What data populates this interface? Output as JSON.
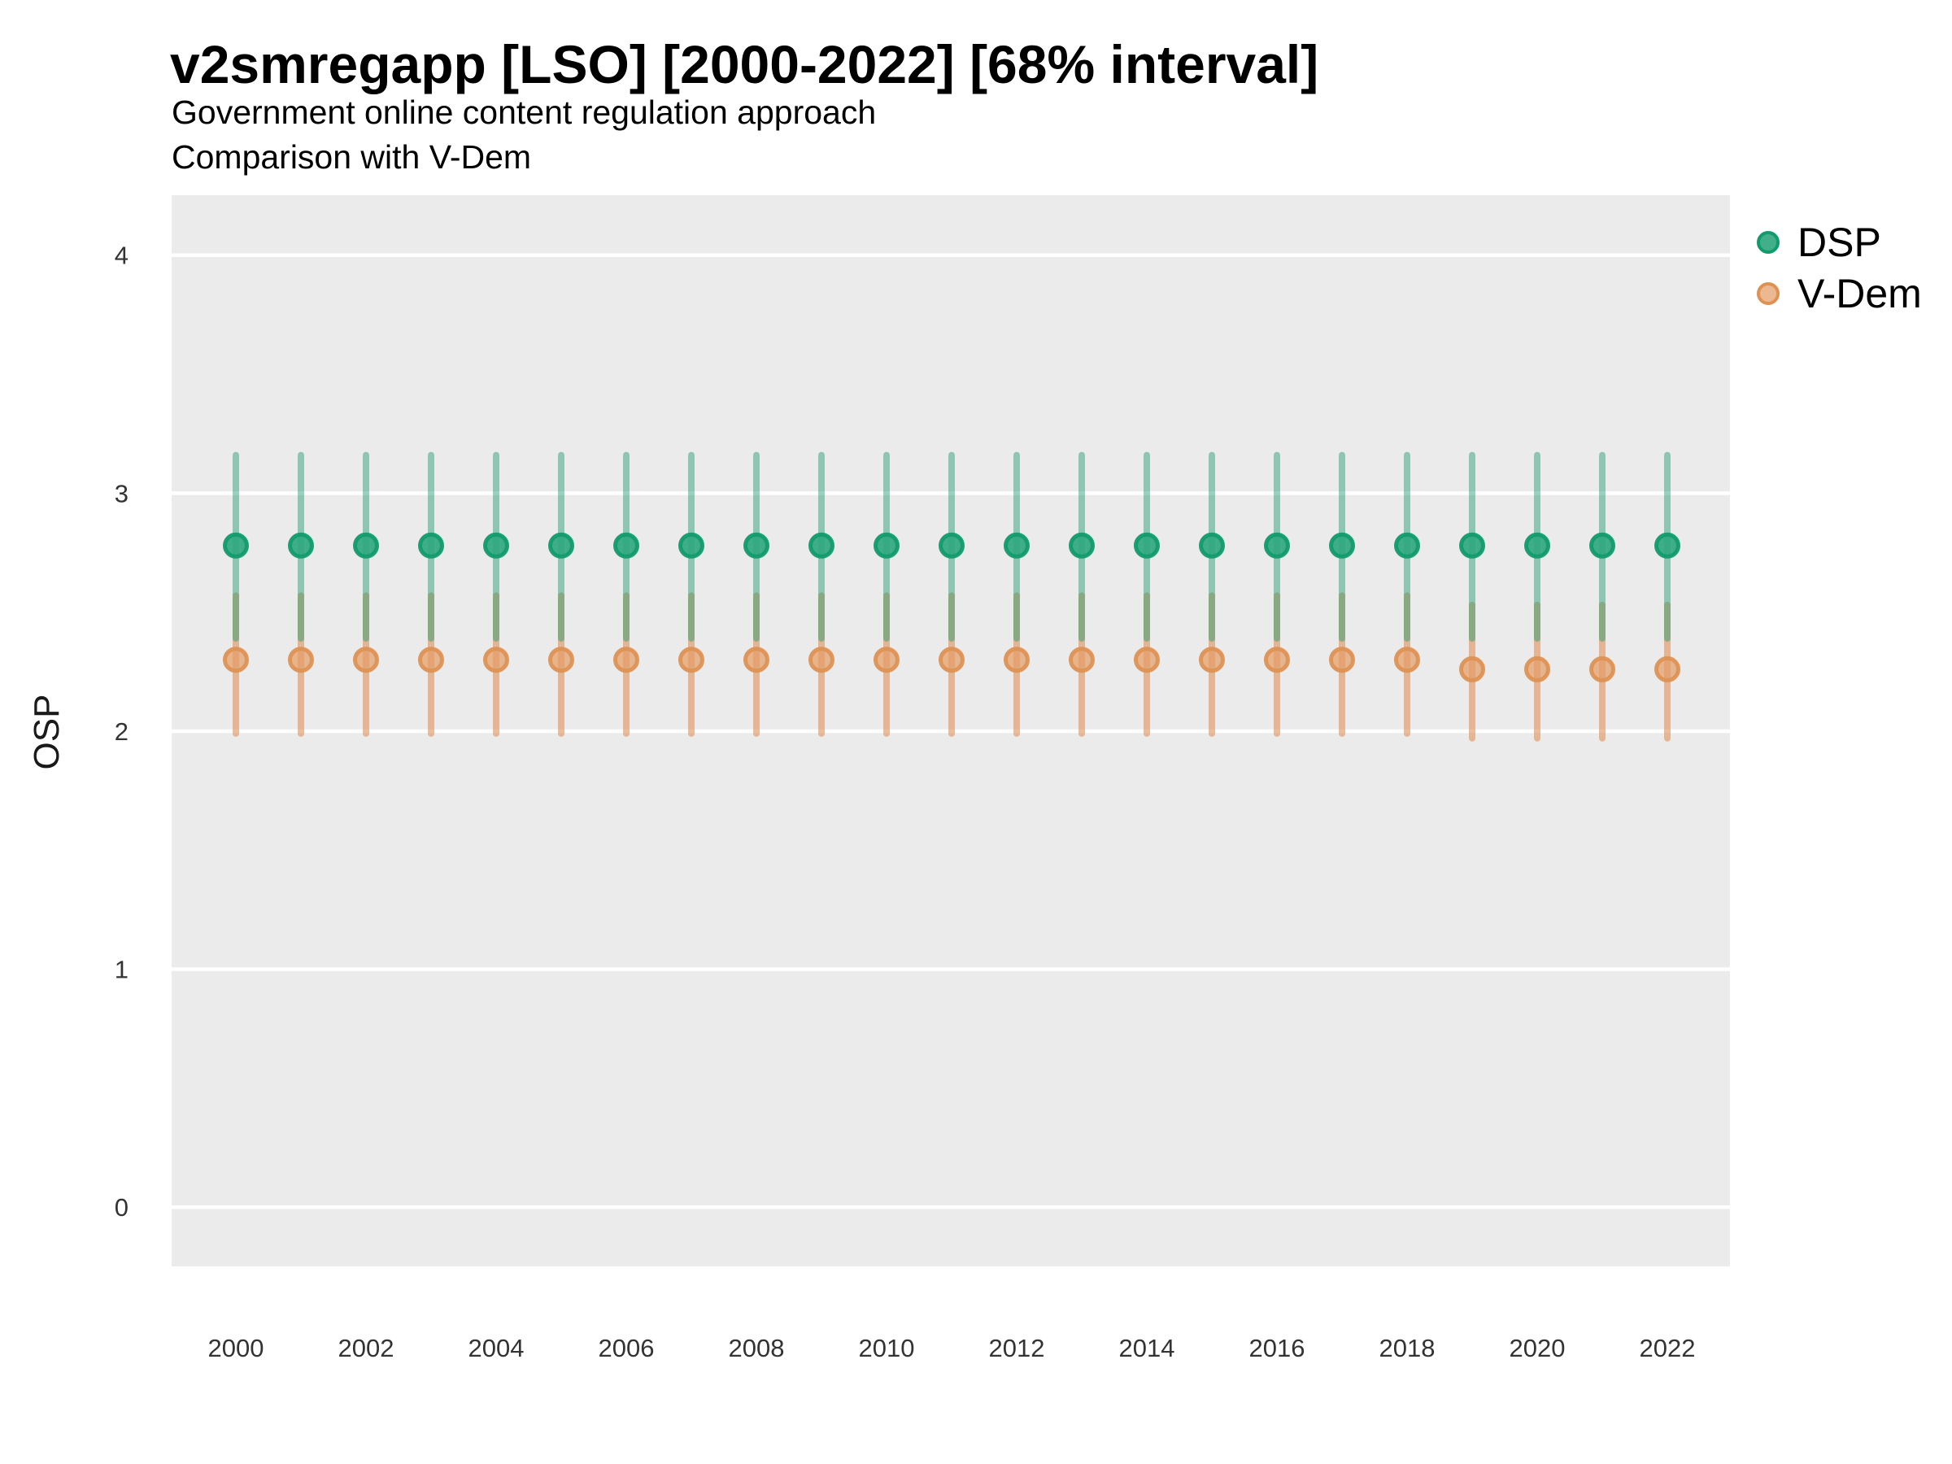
{
  "chart_data": {
    "type": "pointrange",
    "title": "v2smregapp [LSO] [2000-2022] [68% interval]",
    "subtitle_line1": "Government online content regulation approach",
    "subtitle_line2": "Comparison with V-Dem",
    "ylabel": "OSP",
    "xlabel": "",
    "interval_label": "68% interval",
    "ylim": [
      -0.25,
      4.25
    ],
    "y_ticks": [
      0,
      1,
      2,
      3,
      4
    ],
    "x_ticks": [
      2000,
      2002,
      2004,
      2006,
      2008,
      2010,
      2012,
      2014,
      2016,
      2018,
      2020,
      2022
    ],
    "grid": "horizontal-major-only",
    "legend_position": "right",
    "panel_bg": "#EBEBEB",
    "grid_color": "#FFFFFF",
    "axis_text_color": "#333333",
    "series": [
      {
        "name": "V-Dem",
        "color": "#E0945C",
        "bar_alpha": 0.62,
        "point_fill": "#E59D68",
        "point_fill_alpha": 0.72,
        "point_stroke": "#DD9254",
        "points": [
          {
            "year": 2000,
            "est": 2.3,
            "lo": 1.99,
            "hi": 2.57
          },
          {
            "year": 2001,
            "est": 2.3,
            "lo": 1.99,
            "hi": 2.57
          },
          {
            "year": 2002,
            "est": 2.3,
            "lo": 1.99,
            "hi": 2.57
          },
          {
            "year": 2003,
            "est": 2.3,
            "lo": 1.99,
            "hi": 2.57
          },
          {
            "year": 2004,
            "est": 2.3,
            "lo": 1.99,
            "hi": 2.57
          },
          {
            "year": 2005,
            "est": 2.3,
            "lo": 1.99,
            "hi": 2.57
          },
          {
            "year": 2006,
            "est": 2.3,
            "lo": 1.99,
            "hi": 2.57
          },
          {
            "year": 2007,
            "est": 2.3,
            "lo": 1.99,
            "hi": 2.57
          },
          {
            "year": 2008,
            "est": 2.3,
            "lo": 1.99,
            "hi": 2.57
          },
          {
            "year": 2009,
            "est": 2.3,
            "lo": 1.99,
            "hi": 2.57
          },
          {
            "year": 2010,
            "est": 2.3,
            "lo": 1.99,
            "hi": 2.57
          },
          {
            "year": 2011,
            "est": 2.3,
            "lo": 1.99,
            "hi": 2.57
          },
          {
            "year": 2012,
            "est": 2.3,
            "lo": 1.99,
            "hi": 2.57
          },
          {
            "year": 2013,
            "est": 2.3,
            "lo": 1.99,
            "hi": 2.57
          },
          {
            "year": 2014,
            "est": 2.3,
            "lo": 1.99,
            "hi": 2.57
          },
          {
            "year": 2015,
            "est": 2.3,
            "lo": 1.99,
            "hi": 2.57
          },
          {
            "year": 2016,
            "est": 2.3,
            "lo": 1.99,
            "hi": 2.57
          },
          {
            "year": 2017,
            "est": 2.3,
            "lo": 1.99,
            "hi": 2.57
          },
          {
            "year": 2018,
            "est": 2.3,
            "lo": 1.99,
            "hi": 2.57
          },
          {
            "year": 2019,
            "est": 2.26,
            "lo": 1.97,
            "hi": 2.53
          },
          {
            "year": 2020,
            "est": 2.26,
            "lo": 1.97,
            "hi": 2.53
          },
          {
            "year": 2021,
            "est": 2.26,
            "lo": 1.97,
            "hi": 2.53
          },
          {
            "year": 2022,
            "est": 2.26,
            "lo": 1.97,
            "hi": 2.53
          }
        ]
      },
      {
        "name": "DSP",
        "color": "#1A9C72",
        "bar_alpha": 0.45,
        "point_fill": "#2BA67D",
        "point_fill_alpha": 0.9,
        "point_stroke": "#119B6D",
        "points": [
          {
            "year": 2000,
            "est": 2.78,
            "lo": 2.39,
            "hi": 3.16
          },
          {
            "year": 2001,
            "est": 2.78,
            "lo": 2.39,
            "hi": 3.16
          },
          {
            "year": 2002,
            "est": 2.78,
            "lo": 2.39,
            "hi": 3.16
          },
          {
            "year": 2003,
            "est": 2.78,
            "lo": 2.39,
            "hi": 3.16
          },
          {
            "year": 2004,
            "est": 2.78,
            "lo": 2.39,
            "hi": 3.16
          },
          {
            "year": 2005,
            "est": 2.78,
            "lo": 2.39,
            "hi": 3.16
          },
          {
            "year": 2006,
            "est": 2.78,
            "lo": 2.39,
            "hi": 3.16
          },
          {
            "year": 2007,
            "est": 2.78,
            "lo": 2.39,
            "hi": 3.16
          },
          {
            "year": 2008,
            "est": 2.78,
            "lo": 2.39,
            "hi": 3.16
          },
          {
            "year": 2009,
            "est": 2.78,
            "lo": 2.39,
            "hi": 3.16
          },
          {
            "year": 2010,
            "est": 2.78,
            "lo": 2.39,
            "hi": 3.16
          },
          {
            "year": 2011,
            "est": 2.78,
            "lo": 2.39,
            "hi": 3.16
          },
          {
            "year": 2012,
            "est": 2.78,
            "lo": 2.39,
            "hi": 3.16
          },
          {
            "year": 2013,
            "est": 2.78,
            "lo": 2.39,
            "hi": 3.16
          },
          {
            "year": 2014,
            "est": 2.78,
            "lo": 2.39,
            "hi": 3.16
          },
          {
            "year": 2015,
            "est": 2.78,
            "lo": 2.39,
            "hi": 3.16
          },
          {
            "year": 2016,
            "est": 2.78,
            "lo": 2.39,
            "hi": 3.16
          },
          {
            "year": 2017,
            "est": 2.78,
            "lo": 2.39,
            "hi": 3.16
          },
          {
            "year": 2018,
            "est": 2.78,
            "lo": 2.39,
            "hi": 3.16
          },
          {
            "year": 2019,
            "est": 2.78,
            "lo": 2.39,
            "hi": 3.16
          },
          {
            "year": 2020,
            "est": 2.78,
            "lo": 2.39,
            "hi": 3.16
          },
          {
            "year": 2021,
            "est": 2.78,
            "lo": 2.39,
            "hi": 3.16
          },
          {
            "year": 2022,
            "est": 2.78,
            "lo": 2.39,
            "hi": 3.16
          }
        ]
      }
    ],
    "legend_items": [
      {
        "label": "DSP"
      },
      {
        "label": "V-Dem"
      }
    ]
  }
}
